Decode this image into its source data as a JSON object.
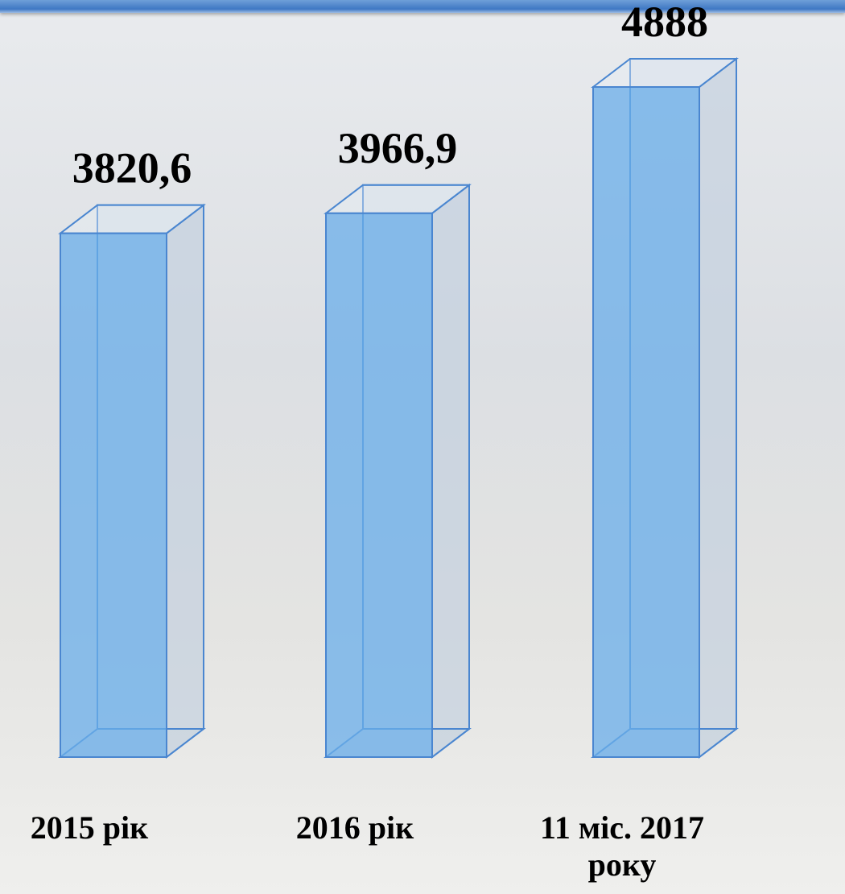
{
  "chart_data": {
    "type": "bar3d",
    "categories": [
      "2015 рік",
      "2016 рік",
      "11 міс. 2017 року"
    ],
    "values": [
      3820.6,
      3966.9,
      4888
    ],
    "value_labels": [
      "3820,6",
      "3966,9",
      "4888"
    ],
    "color": "#6aaeea"
  }
}
